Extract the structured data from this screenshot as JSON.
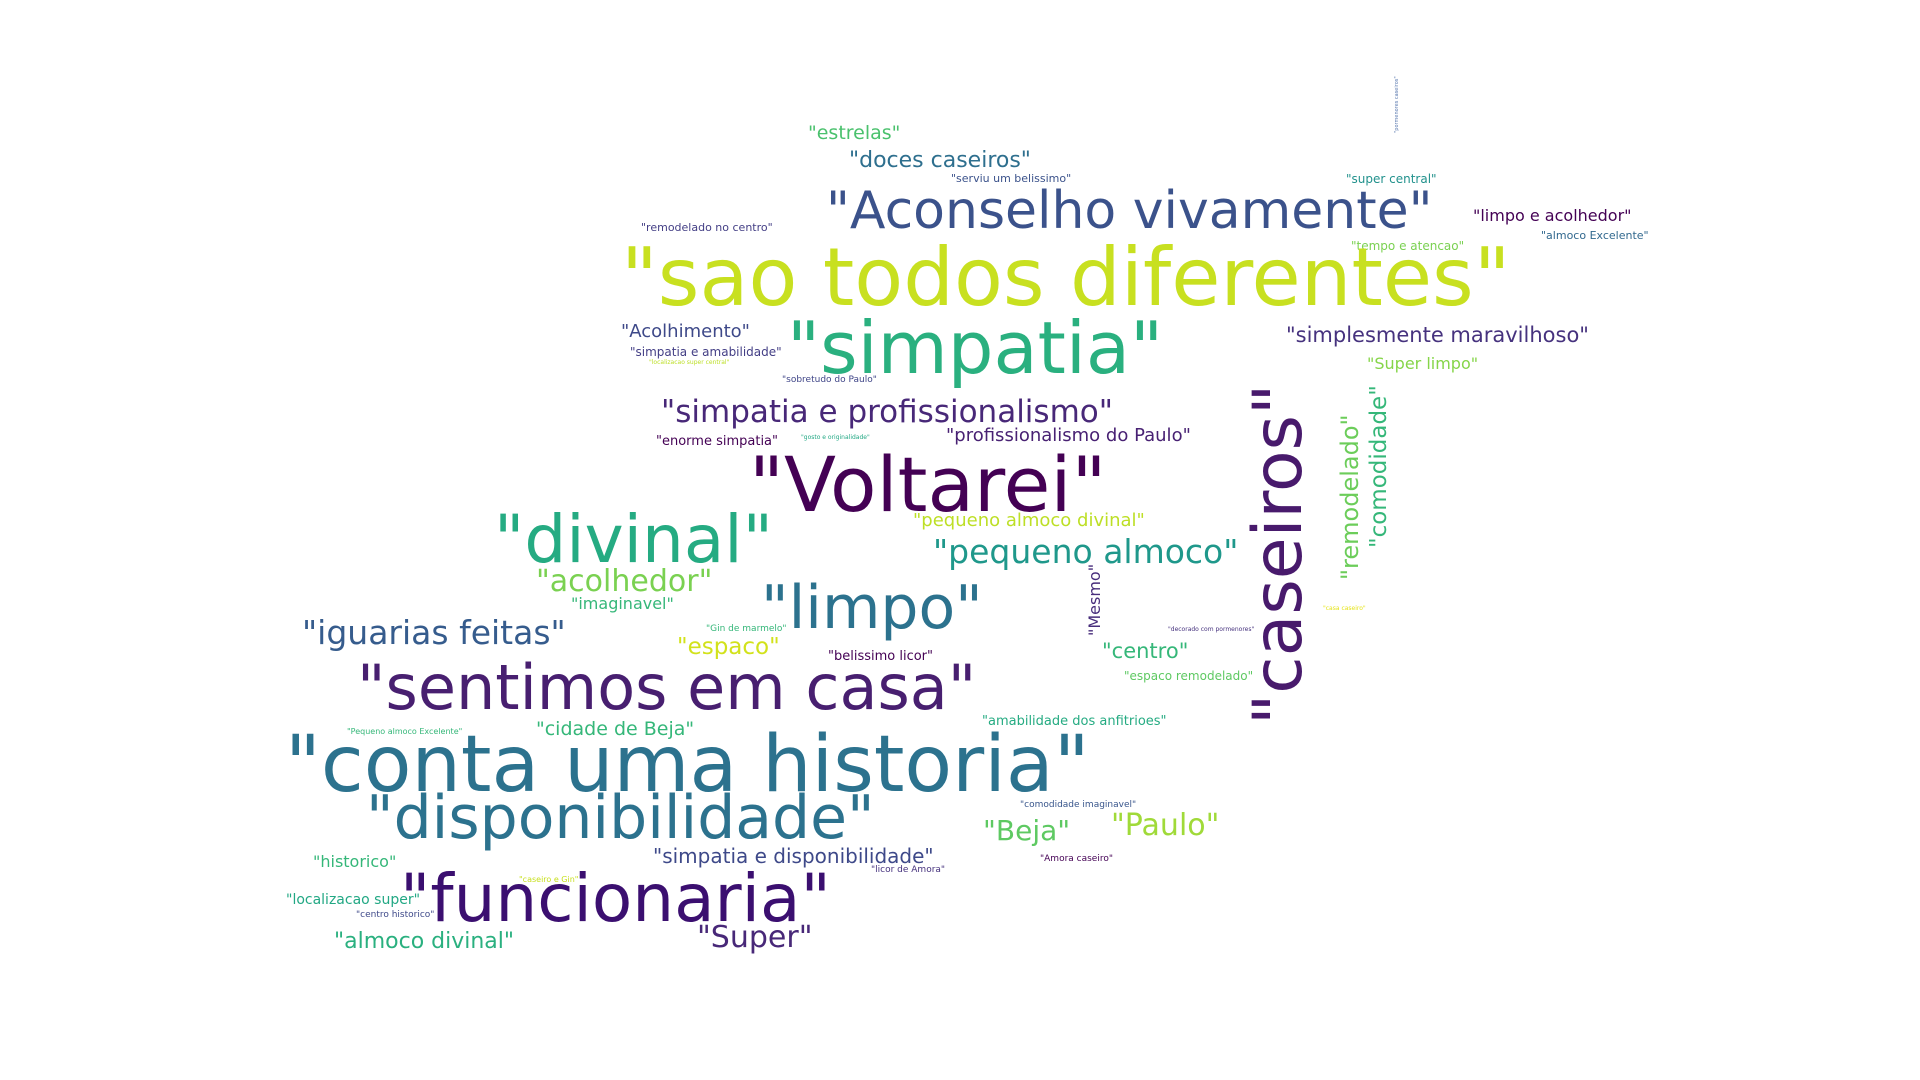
{
  "words": [
    {
      "text": "\"estrelas\"",
      "color": "#4ac16d"
    },
    {
      "text": "\"doces caseiros\"",
      "color": "#2e6f8e"
    },
    {
      "text": "\"serviu um belissimo\"",
      "color": "#3b528b"
    },
    {
      "text": "\"super central\"",
      "color": "#21918c"
    },
    {
      "text": "\"Aconselho vivamente\"",
      "color": "#3b528b"
    },
    {
      "text": "\"limpo e acolhedor\"",
      "color": "#440154"
    },
    {
      "text": "\"almoco Excelente\"",
      "color": "#31688e"
    },
    {
      "text": "\"remodelado no centro\"",
      "color": "#433e85"
    },
    {
      "text": "\"tempo e atencao\"",
      "color": "#7ad151"
    },
    {
      "text": "\"sao todos diferentes\"",
      "color": "#c8e020"
    },
    {
      "text": "\"Acolhimento\"",
      "color": "#3e4989"
    },
    {
      "text": "\"simpatia\"",
      "color": "#2ab07f"
    },
    {
      "text": "\"simplesmente maravilhoso\"",
      "color": "#46327e"
    },
    {
      "text": "\"simpatia e amabilidade\"",
      "color": "#433e85"
    },
    {
      "text": "\"Super limpo\"",
      "color": "#86d549"
    },
    {
      "text": "\"localizacao super central\"",
      "color": "#bddf26"
    },
    {
      "text": "\"sobretudo do Paulo\"",
      "color": "#404688"
    },
    {
      "text": "\"simpatia e profissionalismo\"",
      "color": "#482878"
    },
    {
      "text": "\"enorme simpatia\"",
      "color": "#440154"
    },
    {
      "text": "\"gosto e originalidade\"",
      "color": "#22a884"
    },
    {
      "text": "\"profissionalismo do Paulo\"",
      "color": "#482173"
    },
    {
      "text": "\"Voltarei\"",
      "color": "#440154"
    },
    {
      "text": "\"caseiros\"",
      "color": "#481a6c"
    },
    {
      "text": "\"remodelado\"",
      "color": "#6ccd5a"
    },
    {
      "text": "\"comodidade\"",
      "color": "#35b779"
    },
    {
      "text": "\"divinal\"",
      "color": "#25ab82"
    },
    {
      "text": "\"pequeno almoco divinal\"",
      "color": "#bddf26"
    },
    {
      "text": "\"pequeno almoco\"",
      "color": "#1f988b"
    },
    {
      "text": "\"acolhedor\"",
      "color": "#7ad151"
    },
    {
      "text": "\"imaginavel\"",
      "color": "#35b779"
    },
    {
      "text": "\"limpo\"",
      "color": "#2c728e"
    },
    {
      "text": "\"Mesmo\"",
      "color": "#472d7b"
    },
    {
      "text": "\"iguarias feitas\"",
      "color": "#365c8d"
    },
    {
      "text": "\"Gin de marmelo\"",
      "color": "#35b779"
    },
    {
      "text": "\"espaco\"",
      "color": "#d2e21b"
    },
    {
      "text": "\"belissimo licor\"",
      "color": "#440154"
    },
    {
      "text": "\"decorado com pormenores\"",
      "color": "#46327e"
    },
    {
      "text": "\"centro\"",
      "color": "#35b779"
    },
    {
      "text": "\"espaco remodelado\"",
      "color": "#5ec962"
    },
    {
      "text": "\"casa caseiro\"",
      "color": "#e5e419"
    },
    {
      "text": "\"sentimos em casa\"",
      "color": "#481f70"
    },
    {
      "text": "\"Pequeno almoco Excelente\"",
      "color": "#35b779"
    },
    {
      "text": "\"cidade de Beja\"",
      "color": "#35b779"
    },
    {
      "text": "\"amabilidade dos anfitrioes\"",
      "color": "#25ab82"
    },
    {
      "text": "\"conta uma historia\"",
      "color": "#2c728e"
    },
    {
      "text": "\"comodidade imaginavel\"",
      "color": "#39568c"
    },
    {
      "text": "\"disponibilidade\"",
      "color": "#2c728e"
    },
    {
      "text": "\"Beja\"",
      "color": "#5ec962"
    },
    {
      "text": "\"Paulo\"",
      "color": "#a0da39"
    },
    {
      "text": "\"historico\"",
      "color": "#35b779"
    },
    {
      "text": "\"simpatia e disponibilidade\"",
      "color": "#3e4989"
    },
    {
      "text": "\"Amora caseiro\"",
      "color": "#440154"
    },
    {
      "text": "\"licor de Amora\"",
      "color": "#46327e"
    },
    {
      "text": "\"caseiro e Gin\"",
      "color": "#c8e020"
    },
    {
      "text": "\"localizacao super\"",
      "color": "#22a884"
    },
    {
      "text": "\"funcionaria\"",
      "color": "#3b0f70"
    },
    {
      "text": "\"centro historico\"",
      "color": "#3e4989"
    },
    {
      "text": "\"almoco divinal\"",
      "color": "#2ab07f"
    },
    {
      "text": "\"Super\"",
      "color": "#482878"
    },
    {
      "text": "\"pormenores caseiros\"",
      "color": "#5b7ab0"
    }
  ]
}
